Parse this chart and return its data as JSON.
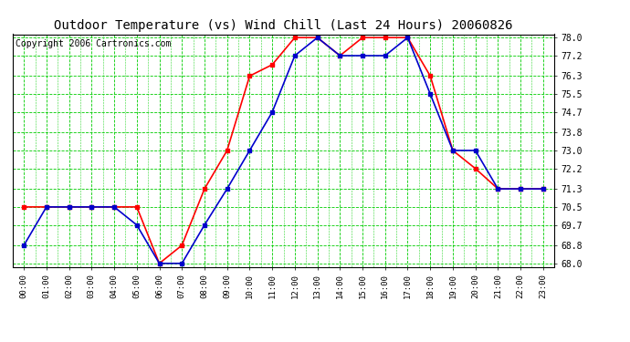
{
  "title": "Outdoor Temperature (vs) Wind Chill (Last 24 Hours) 20060826",
  "copyright": "Copyright 2006 Cartronics.com",
  "hours": [
    "00:00",
    "01:00",
    "02:00",
    "03:00",
    "04:00",
    "05:00",
    "06:00",
    "07:00",
    "08:00",
    "09:00",
    "10:00",
    "11:00",
    "12:00",
    "13:00",
    "14:00",
    "15:00",
    "16:00",
    "17:00",
    "18:00",
    "19:00",
    "20:00",
    "21:00",
    "22:00",
    "23:00"
  ],
  "outdoor_temp": [
    70.5,
    70.5,
    70.5,
    70.5,
    70.5,
    70.5,
    68.0,
    68.8,
    71.3,
    73.0,
    76.3,
    76.8,
    78.0,
    78.0,
    77.2,
    78.0,
    78.0,
    78.0,
    76.3,
    73.0,
    72.2,
    71.3,
    71.3,
    71.3
  ],
  "wind_chill": [
    68.8,
    70.5,
    70.5,
    70.5,
    70.5,
    69.7,
    68.0,
    68.0,
    69.7,
    71.3,
    73.0,
    74.7,
    77.2,
    78.0,
    77.2,
    77.2,
    77.2,
    78.0,
    75.5,
    73.0,
    73.0,
    71.3,
    71.3,
    71.3
  ],
  "temp_color": "#FF0000",
  "wind_color": "#0000CC",
  "bg_color": "#FFFFFF",
  "plot_bg": "#FFFFFF",
  "grid_color": "#00CC00",
  "ylim_min": 68.0,
  "ylim_max": 78.0,
  "yticks": [
    68.0,
    68.8,
    69.7,
    70.5,
    71.3,
    72.2,
    73.0,
    73.8,
    74.7,
    75.5,
    76.3,
    77.2,
    78.0
  ],
  "title_fontsize": 10,
  "copyright_fontsize": 7,
  "marker": "s",
  "marker_size": 2.5,
  "linewidth": 1.2
}
